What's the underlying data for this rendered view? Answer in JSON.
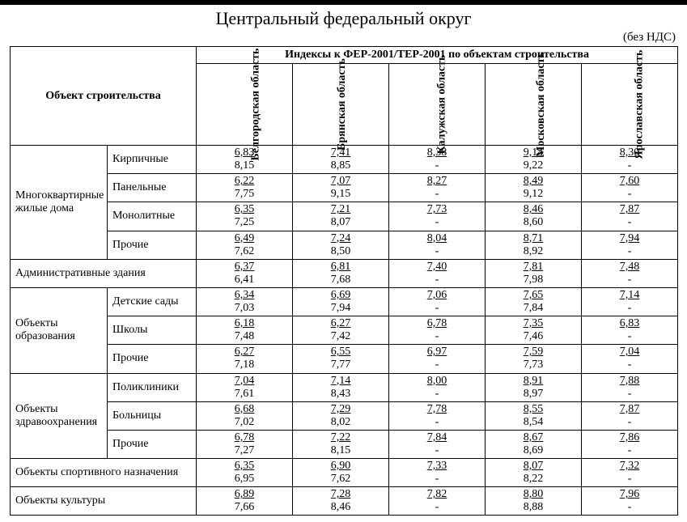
{
  "title": "Центральный федеральный округ",
  "note": "(без НДС)",
  "headers": {
    "object": "Объект строительства",
    "index_title": "Индексы к ФЕР-2001/ТЕР-2001 по объектам строительства",
    "regions": [
      "Белгородская область",
      "Брянская область",
      "Калужская область",
      "Московская область",
      "Ярославская область"
    ]
  },
  "groups": [
    {
      "category": "Многоквартирные жилые дома",
      "rows": [
        {
          "sub": "Кирпичные",
          "cells": [
            [
              "6,83",
              "8,15"
            ],
            [
              "7,41",
              "8,85"
            ],
            [
              "8,38",
              "-"
            ],
            [
              "9,14",
              "9,22"
            ],
            [
              "8,30",
              "-"
            ]
          ]
        },
        {
          "sub": "Панельные",
          "cells": [
            [
              "6,22",
              "7,75"
            ],
            [
              "7,07",
              "9,15"
            ],
            [
              "8,27",
              "-"
            ],
            [
              "8,49",
              "9,12"
            ],
            [
              "7,60",
              "-"
            ]
          ]
        },
        {
          "sub": "Монолитные",
          "cells": [
            [
              "6,35",
              "7,25"
            ],
            [
              "7,21",
              "8,07"
            ],
            [
              "7,73",
              "-"
            ],
            [
              "8,46",
              "8,60"
            ],
            [
              "7,87",
              "-"
            ]
          ]
        },
        {
          "sub": "Прочие",
          "cells": [
            [
              "6,49",
              "7,62"
            ],
            [
              "7,24",
              "8,50"
            ],
            [
              "8,04",
              "-"
            ],
            [
              "8,71",
              "8,92"
            ],
            [
              "7,94",
              "-"
            ]
          ]
        }
      ]
    },
    {
      "category": "Административные здания",
      "span": true,
      "rows": [
        {
          "cells": [
            [
              "6,37",
              "6,41"
            ],
            [
              "6,81",
              "7,68"
            ],
            [
              "7,40",
              "-"
            ],
            [
              "7,81",
              "7,98"
            ],
            [
              "7,48",
              "-"
            ]
          ]
        }
      ]
    },
    {
      "category": "Объекты образования",
      "rows": [
        {
          "sub": "Детские сады",
          "cells": [
            [
              "6,34",
              "7,03"
            ],
            [
              "6,69",
              "7,94"
            ],
            [
              "7,06",
              "-"
            ],
            [
              "7,65",
              "7,84"
            ],
            [
              "7,14",
              "-"
            ]
          ]
        },
        {
          "sub": "Школы",
          "cells": [
            [
              "6,18",
              "7,48"
            ],
            [
              "6,27",
              "7,42"
            ],
            [
              "6,78",
              "-"
            ],
            [
              "7,35",
              "7,46"
            ],
            [
              "6,83",
              "-"
            ]
          ]
        },
        {
          "sub": "Прочие",
          "cells": [
            [
              "6,27",
              "7,18"
            ],
            [
              "6,55",
              "7,77"
            ],
            [
              "6,97",
              "-"
            ],
            [
              "7,59",
              "7,73"
            ],
            [
              "7,04",
              "-"
            ]
          ]
        }
      ]
    },
    {
      "category": "Объекты здравоохранения",
      "rows": [
        {
          "sub": "Поликлиники",
          "cells": [
            [
              "7,04",
              "7,61"
            ],
            [
              "7,14",
              "8,43"
            ],
            [
              "8,00",
              "-"
            ],
            [
              "8,91",
              "8,97"
            ],
            [
              "7,88",
              "-"
            ]
          ]
        },
        {
          "sub": "Больницы",
          "cells": [
            [
              "6,68",
              "7,02"
            ],
            [
              "7,29",
              "8,02"
            ],
            [
              "7,78",
              "-"
            ],
            [
              "8,55",
              "8,54"
            ],
            [
              "7,87",
              "-"
            ]
          ]
        },
        {
          "sub": "Прочие",
          "cells": [
            [
              "6,78",
              "7,27"
            ],
            [
              "7,22",
              "8,15"
            ],
            [
              "7,84",
              "-"
            ],
            [
              "8,67",
              "8,69"
            ],
            [
              "7,86",
              "-"
            ]
          ]
        }
      ]
    },
    {
      "category": "Объекты спортивного назначения",
      "span": true,
      "rows": [
        {
          "cells": [
            [
              "6,35",
              "6,95"
            ],
            [
              "6,90",
              "7,62"
            ],
            [
              "7,33",
              "-"
            ],
            [
              "8,07",
              "8,22"
            ],
            [
              "7,32",
              "-"
            ]
          ]
        }
      ]
    },
    {
      "category": "Объекты культуры",
      "span": true,
      "rows": [
        {
          "cells": [
            [
              "6,89",
              "7,66"
            ],
            [
              "7,28",
              "8,46"
            ],
            [
              "7,82",
              "-"
            ],
            [
              "8,80",
              "8,88"
            ],
            [
              "7,96",
              "-"
            ]
          ]
        }
      ]
    }
  ],
  "style": {
    "background": "#ffffff",
    "text_color": "#000000",
    "border_color": "#000000",
    "title_fontsize": 22,
    "cell_fontsize": 14,
    "font_family": "Times New Roman"
  }
}
